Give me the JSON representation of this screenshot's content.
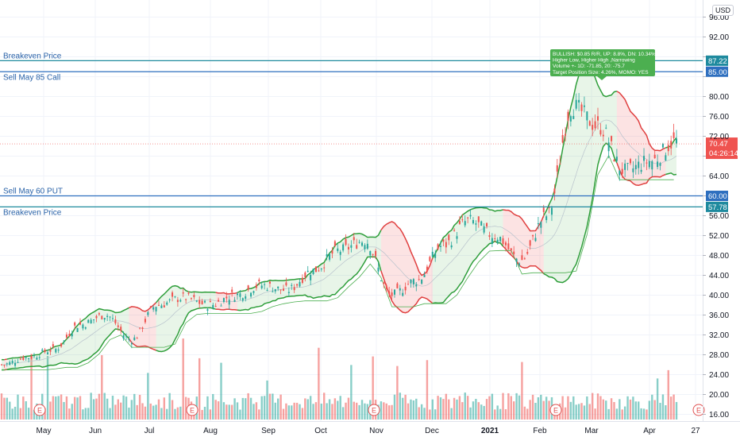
{
  "header": {
    "currency_label": "USD"
  },
  "chart_data": {
    "type": "candlestick",
    "y_axis": {
      "ylim": [
        13.5,
        97.5
      ],
      "ticks": [
        "16.00",
        "20.00",
        "24.00",
        "28.00",
        "32.00",
        "36.00",
        "40.00",
        "44.00",
        "48.00",
        "52.00",
        "56.00",
        "60.00",
        "64.00",
        "68.00",
        "72.00",
        "76.00",
        "80.00",
        "84.00",
        "88.00",
        "92.00",
        "96.00"
      ]
    },
    "x_axis": {
      "labels": [
        "May",
        "Jun",
        "Jul",
        "Aug",
        "Sep",
        "Oct",
        "Nov",
        "Dec",
        "2021",
        "Feb",
        "Mar",
        "Apr",
        "27"
      ]
    },
    "price_series": {
      "dates": [
        "2020-04-15",
        "2020-04-29",
        "2020-05-13",
        "2020-05-27",
        "2020-06-10",
        "2020-06-24",
        "2020-07-08",
        "2020-07-22",
        "2020-08-05",
        "2020-08-19",
        "2020-09-02",
        "2020-09-16",
        "2020-09-30",
        "2020-10-14",
        "2020-10-28",
        "2020-11-11",
        "2020-11-25",
        "2020-12-09",
        "2020-12-23",
        "2021-01-06",
        "2021-01-20",
        "2021-02-03",
        "2021-02-17",
        "2021-03-03",
        "2021-03-17",
        "2021-03-31",
        "2021-04-14"
      ],
      "close": [
        26,
        27.5,
        29,
        34,
        36,
        31,
        38,
        39.5,
        38,
        40,
        42,
        41,
        45,
        49,
        51,
        40,
        43,
        50,
        55,
        52,
        47,
        56,
        78,
        74,
        65,
        67,
        71
      ]
    },
    "horizontal_lines": [
      {
        "label": "Breakeven Price",
        "price": 87.22,
        "badge": "87.22",
        "color": "#1e8a9e"
      },
      {
        "label": "Sell May 85 Call",
        "price": 85.0,
        "badge": "85.00",
        "color": "#2e6fbf"
      },
      {
        "label": "Sell May 60 PUT",
        "price": 60.0,
        "badge": "60.00",
        "color": "#2e6fbf"
      },
      {
        "label": "Breakeven Price",
        "price": 57.78,
        "badge": "57.78",
        "color": "#1e8a9e"
      }
    ],
    "last_price": {
      "value": "70.47",
      "countdown": "04:26:14",
      "price": 70.47
    },
    "annotation": {
      "lines": [
        "BULLISH: $0.85 R/R, UP: 8.8%, DN: 10.34%",
        "Higher Low, Higher High ,Narrowing",
        "Volume +- 1D: -71.85, 20: -75.7",
        "Target Position Size: 4.26%, MOMO: YES"
      ]
    },
    "earnings_marker": "E",
    "colors": {
      "up": "#26a69a",
      "down": "#ef5350",
      "band_bull": "#2e9e3a",
      "band_bear": "#e04040",
      "price_line": "#ef5350"
    }
  }
}
